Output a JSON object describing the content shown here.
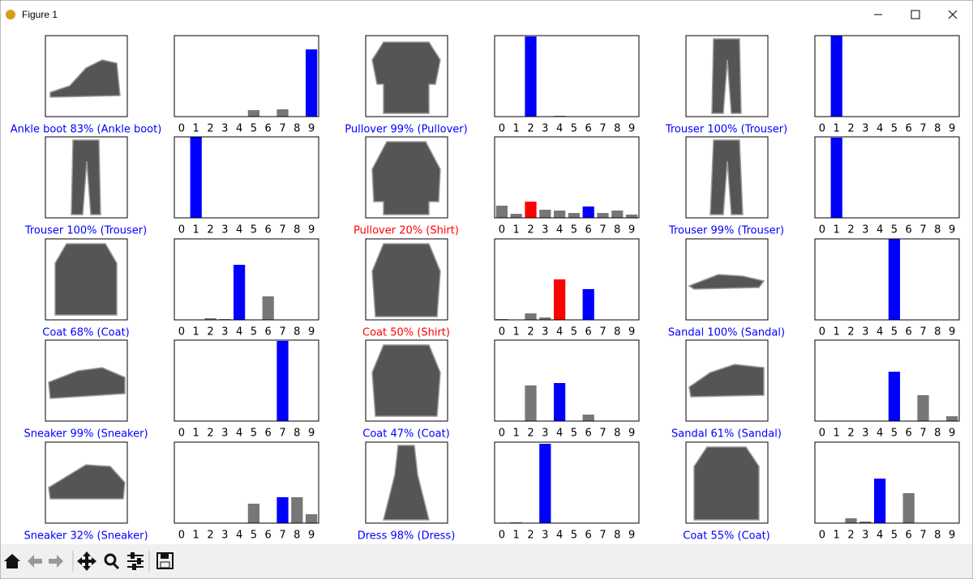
{
  "window": {
    "title": "Figure 1"
  },
  "chart_data": [
    {
      "type": "bar",
      "caption": "Ankle boot 83% (Ankle boot)",
      "caption_color": "#0000ff",
      "categories": [
        "0",
        "1",
        "2",
        "3",
        "4",
        "5",
        "6",
        "7",
        "8",
        "9"
      ],
      "values": [
        0,
        0,
        0,
        0,
        0,
        8,
        0,
        9,
        0,
        83
      ],
      "colors": [
        "#777777",
        "#777777",
        "#777777",
        "#777777",
        "#777777",
        "#777777",
        "#777777",
        "#777777",
        "#777777",
        "#0000ff"
      ],
      "ylim": [
        0,
        100
      ]
    },
    {
      "type": "bar",
      "caption": "Pullover 99% (Pullover)",
      "caption_color": "#0000ff",
      "categories": [
        "0",
        "1",
        "2",
        "3",
        "4",
        "5",
        "6",
        "7",
        "8",
        "9"
      ],
      "values": [
        0,
        0,
        99,
        0,
        1,
        0,
        0,
        0,
        0,
        0
      ],
      "colors": [
        "#777777",
        "#777777",
        "#0000ff",
        "#777777",
        "#777777",
        "#777777",
        "#777777",
        "#777777",
        "#777777",
        "#777777"
      ],
      "ylim": [
        0,
        100
      ]
    },
    {
      "type": "bar",
      "caption": "Trouser 100% (Trouser)",
      "caption_color": "#0000ff",
      "categories": [
        "0",
        "1",
        "2",
        "3",
        "4",
        "5",
        "6",
        "7",
        "8",
        "9"
      ],
      "values": [
        0,
        100,
        0,
        0,
        0,
        0,
        0,
        0,
        0,
        0
      ],
      "colors": [
        "#777777",
        "#0000ff",
        "#777777",
        "#777777",
        "#777777",
        "#777777",
        "#777777",
        "#777777",
        "#777777",
        "#777777"
      ],
      "ylim": [
        0,
        100
      ]
    },
    {
      "type": "bar",
      "caption": "Trouser 100% (Trouser)",
      "caption_color": "#0000ff",
      "categories": [
        "0",
        "1",
        "2",
        "3",
        "4",
        "5",
        "6",
        "7",
        "8",
        "9"
      ],
      "values": [
        0,
        100,
        0,
        0,
        0,
        0,
        0,
        0,
        0,
        0
      ],
      "colors": [
        "#777777",
        "#0000ff",
        "#777777",
        "#777777",
        "#777777",
        "#777777",
        "#777777",
        "#777777",
        "#777777",
        "#777777"
      ],
      "ylim": [
        0,
        100
      ]
    },
    {
      "type": "bar",
      "caption": "Pullover 20% (Shirt)",
      "caption_color": "#ff0000",
      "categories": [
        "0",
        "1",
        "2",
        "3",
        "4",
        "5",
        "6",
        "7",
        "8",
        "9"
      ],
      "values": [
        15,
        5,
        20,
        10,
        9,
        6,
        14,
        6,
        9,
        4
      ],
      "colors": [
        "#777777",
        "#777777",
        "#ff0000",
        "#777777",
        "#777777",
        "#777777",
        "#0000ff",
        "#777777",
        "#777777",
        "#777777"
      ],
      "ylim": [
        0,
        100
      ]
    },
    {
      "type": "bar",
      "caption": "Trouser 99% (Trouser)",
      "caption_color": "#0000ff",
      "categories": [
        "0",
        "1",
        "2",
        "3",
        "4",
        "5",
        "6",
        "7",
        "8",
        "9"
      ],
      "values": [
        0,
        99,
        0,
        0,
        0,
        0,
        0,
        0,
        0,
        0
      ],
      "colors": [
        "#777777",
        "#0000ff",
        "#777777",
        "#777777",
        "#777777",
        "#777777",
        "#777777",
        "#777777",
        "#777777",
        "#777777"
      ],
      "ylim": [
        0,
        100
      ]
    },
    {
      "type": "bar",
      "caption": "Coat 68% (Coat)",
      "caption_color": "#0000ff",
      "categories": [
        "0",
        "1",
        "2",
        "3",
        "4",
        "5",
        "6",
        "7",
        "8",
        "9"
      ],
      "values": [
        0,
        0,
        2,
        1,
        68,
        0,
        29,
        0,
        0,
        0
      ],
      "colors": [
        "#777777",
        "#777777",
        "#777777",
        "#777777",
        "#0000ff",
        "#777777",
        "#777777",
        "#777777",
        "#777777",
        "#777777"
      ],
      "ylim": [
        0,
        100
      ]
    },
    {
      "type": "bar",
      "caption": "Coat 50% (Shirt)",
      "caption_color": "#ff0000",
      "categories": [
        "0",
        "1",
        "2",
        "3",
        "4",
        "5",
        "6",
        "7",
        "8",
        "9"
      ],
      "values": [
        1,
        0,
        8,
        3,
        50,
        0,
        38,
        0,
        0,
        0
      ],
      "colors": [
        "#777777",
        "#777777",
        "#777777",
        "#777777",
        "#ff0000",
        "#777777",
        "#0000ff",
        "#777777",
        "#777777",
        "#777777"
      ],
      "ylim": [
        0,
        100
      ]
    },
    {
      "type": "bar",
      "caption": "Sandal 100% (Sandal)",
      "caption_color": "#0000ff",
      "categories": [
        "0",
        "1",
        "2",
        "3",
        "4",
        "5",
        "6",
        "7",
        "8",
        "9"
      ],
      "values": [
        0,
        0,
        0,
        0,
        0,
        100,
        0,
        0,
        0,
        0
      ],
      "colors": [
        "#777777",
        "#777777",
        "#777777",
        "#777777",
        "#777777",
        "#0000ff",
        "#777777",
        "#777777",
        "#777777",
        "#777777"
      ],
      "ylim": [
        0,
        100
      ]
    },
    {
      "type": "bar",
      "caption": "Sneaker 99% (Sneaker)",
      "caption_color": "#0000ff",
      "categories": [
        "0",
        "1",
        "2",
        "3",
        "4",
        "5",
        "6",
        "7",
        "8",
        "9"
      ],
      "values": [
        0,
        0,
        0,
        0,
        0,
        0,
        0,
        99,
        0,
        0
      ],
      "colors": [
        "#777777",
        "#777777",
        "#777777",
        "#777777",
        "#777777",
        "#777777",
        "#777777",
        "#0000ff",
        "#777777",
        "#777777"
      ],
      "ylim": [
        0,
        100
      ]
    },
    {
      "type": "bar",
      "caption": "Coat 47% (Coat)",
      "caption_color": "#0000ff",
      "categories": [
        "0",
        "1",
        "2",
        "3",
        "4",
        "5",
        "6",
        "7",
        "8",
        "9"
      ],
      "values": [
        0,
        0,
        44,
        0,
        47,
        0,
        8,
        0,
        0,
        0
      ],
      "colors": [
        "#777777",
        "#777777",
        "#777777",
        "#777777",
        "#0000ff",
        "#777777",
        "#777777",
        "#777777",
        "#777777",
        "#777777"
      ],
      "ylim": [
        0,
        100
      ]
    },
    {
      "type": "bar",
      "caption": "Sandal 61% (Sandal)",
      "caption_color": "#0000ff",
      "categories": [
        "0",
        "1",
        "2",
        "3",
        "4",
        "5",
        "6",
        "7",
        "8",
        "9"
      ],
      "values": [
        0,
        0,
        0,
        0,
        0,
        61,
        0,
        32,
        0,
        6
      ],
      "colors": [
        "#777777",
        "#777777",
        "#777777",
        "#777777",
        "#777777",
        "#0000ff",
        "#777777",
        "#777777",
        "#777777",
        "#777777"
      ],
      "ylim": [
        0,
        100
      ]
    },
    {
      "type": "bar",
      "caption": "Sneaker 32% (Sneaker)",
      "caption_color": "#0000ff",
      "categories": [
        "0",
        "1",
        "2",
        "3",
        "4",
        "5",
        "6",
        "7",
        "8",
        "9"
      ],
      "values": [
        0,
        0,
        0,
        0,
        0,
        24,
        0,
        32,
        32,
        11
      ],
      "colors": [
        "#777777",
        "#777777",
        "#777777",
        "#777777",
        "#777777",
        "#777777",
        "#777777",
        "#0000ff",
        "#777777",
        "#777777"
      ],
      "ylim": [
        0,
        100
      ]
    },
    {
      "type": "bar",
      "caption": "Dress 98% (Dress)",
      "caption_color": "#0000ff",
      "categories": [
        "0",
        "1",
        "2",
        "3",
        "4",
        "5",
        "6",
        "7",
        "8",
        "9"
      ],
      "values": [
        0,
        1,
        0,
        98,
        0,
        0,
        0,
        0,
        0,
        0
      ],
      "colors": [
        "#777777",
        "#777777",
        "#777777",
        "#0000ff",
        "#777777",
        "#777777",
        "#777777",
        "#777777",
        "#777777",
        "#777777"
      ],
      "ylim": [
        0,
        100
      ]
    },
    {
      "type": "bar",
      "caption": "Coat 55% (Coat)",
      "caption_color": "#0000ff",
      "categories": [
        "0",
        "1",
        "2",
        "3",
        "4",
        "5",
        "6",
        "7",
        "8",
        "9"
      ],
      "values": [
        0,
        0,
        6,
        2,
        55,
        0,
        37,
        0,
        0,
        0
      ],
      "colors": [
        "#777777",
        "#777777",
        "#777777",
        "#777777",
        "#0000ff",
        "#777777",
        "#777777",
        "#777777",
        "#777777",
        "#777777"
      ],
      "ylim": [
        0,
        100
      ]
    }
  ]
}
